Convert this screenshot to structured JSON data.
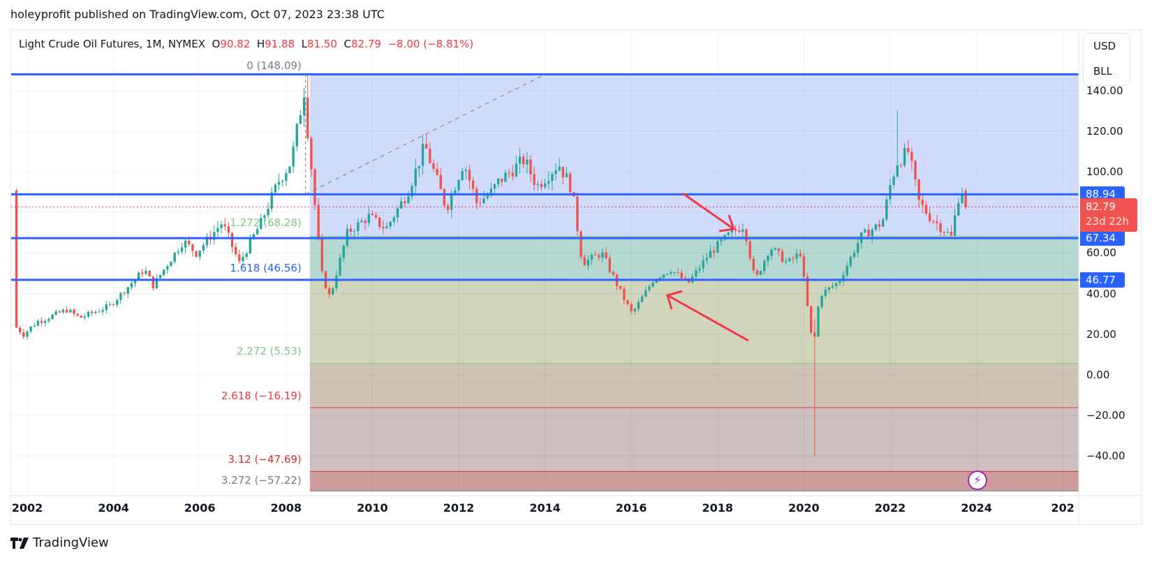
{
  "header": {
    "published": "holeyprofit published on TradingView.com, Oct 07, 2023 23:38 UTC"
  },
  "legend": {
    "symbol": "Light Crude Oil Futures, 1M, NYMEX",
    "open_label": "O",
    "open": "90.82",
    "high_label": "H",
    "high": "91.88",
    "low_label": "L",
    "low": "81.50",
    "close_label": "C",
    "close": "82.79",
    "change": "−8.00 (−8.81%)"
  },
  "units": {
    "currency": "USD",
    "unit": "BLL"
  },
  "price_axis": {
    "ticks": [
      "140.00",
      "120.00",
      "100.00",
      "60.00",
      "40.00",
      "20.00",
      "0.00",
      "−20.00",
      "−40.00"
    ],
    "tags": [
      {
        "value": "88.94",
        "color": "#2962ff"
      },
      {
        "value": "67.34",
        "color": "#2962ff"
      },
      {
        "value": "46.77",
        "color": "#2962ff"
      }
    ],
    "last_price": {
      "value": "82.79",
      "countdown": "23d 22h",
      "color": "#f05350"
    }
  },
  "time_axis": {
    "ticks": [
      "2002",
      "2004",
      "2006",
      "2008",
      "2010",
      "2012",
      "2014",
      "2016",
      "2018",
      "2020",
      "2022",
      "2024",
      "202"
    ]
  },
  "fib_levels": [
    {
      "label": "0 (148.09)",
      "color": "#787b86"
    },
    {
      "label": "1.272 (68.28)",
      "color": "#81c784"
    },
    {
      "label": "1.618 (46.56)",
      "color": "#2962ff"
    },
    {
      "label": "2.272 (5.53)",
      "color": "#81c784"
    },
    {
      "label": "2.618 (−16.19)",
      "color": "#f23645"
    },
    {
      "label": "3.12 (−47.69)",
      "color": "#d32f2f"
    },
    {
      "label": "3.272 (−57.22)",
      "color": "#787b86"
    }
  ],
  "horizontal_lines": [
    {
      "price": 148.09,
      "color": "#2962ff"
    },
    {
      "price": 88.94,
      "color": "#2962ff"
    },
    {
      "price": 67.34,
      "color": "#2962ff"
    },
    {
      "price": 46.77,
      "color": "#2962ff"
    }
  ],
  "colors": {
    "up": "#26a69a",
    "down": "#ef5350",
    "accent": "#2962ff",
    "arrow": "#f23645"
  },
  "footer": {
    "brand": "TradingView"
  },
  "chart_data": {
    "type": "candlestick",
    "title": "Light Crude Oil Futures, 1M, NYMEX",
    "xlabel": "",
    "ylabel": "USD/BLL",
    "ylim": [
      -57.22,
      155
    ],
    "x_range": [
      "2001-10",
      "2026"
    ],
    "grid": true,
    "last": {
      "open": 90.82,
      "high": 91.88,
      "low": 81.5,
      "close": 82.79,
      "change": -8.0,
      "change_pct": -8.81
    },
    "fibonacci_extension": [
      {
        "ratio": 0,
        "price": 148.09
      },
      {
        "ratio": 1.272,
        "price": 68.28
      },
      {
        "ratio": 1.618,
        "price": 46.56
      },
      {
        "ratio": 2.272,
        "price": 5.53
      },
      {
        "ratio": 2.618,
        "price": -16.19
      },
      {
        "ratio": 3.12,
        "price": -47.69
      },
      {
        "ratio": 3.272,
        "price": -57.22
      }
    ],
    "support_resistance": [
      148.09,
      88.94,
      67.34,
      46.77
    ],
    "yearly_closes_approx": {
      "2002": 31,
      "2003": 32,
      "2004": 43,
      "2005": 61,
      "2006": 61,
      "2007": 96,
      "2008": 45,
      "2009": 79,
      "2010": 91,
      "2011": 99,
      "2012": 92,
      "2013": 98,
      "2014": 54,
      "2015": 37,
      "2016": 54,
      "2017": 60,
      "2018": 45,
      "2019": 61,
      "2020": 48,
      "2021": 75,
      "2022": 80,
      "2023": 83
    },
    "notable": [
      {
        "date": "2008-07",
        "high": 147.27
      },
      {
        "date": "2020-04",
        "low": -40.32
      },
      {
        "date": "2022-03",
        "high": 130.5
      }
    ]
  }
}
